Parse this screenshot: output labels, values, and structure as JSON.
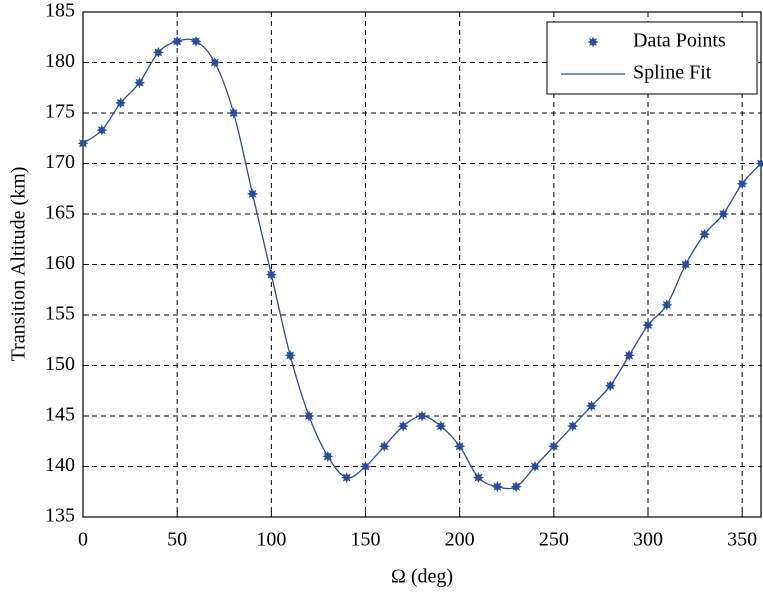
{
  "chart_data": {
    "type": "line",
    "xlabel": "Ω (deg)",
    "ylabel": "Transition Altitude (km)",
    "x": [
      0,
      10,
      20,
      30,
      40,
      50,
      60,
      70,
      80,
      90,
      100,
      110,
      120,
      130,
      140,
      150,
      160,
      170,
      180,
      190,
      200,
      210,
      220,
      230,
      240,
      250,
      260,
      270,
      280,
      290,
      300,
      310,
      320,
      330,
      340,
      350,
      360
    ],
    "series": [
      {
        "name": "Data Points",
        "color": "#2a4e9c",
        "style": "markers",
        "values": [
          172,
          173.3,
          176,
          178,
          181,
          182.1,
          182.1,
          180,
          175,
          167,
          159,
          151,
          145,
          141,
          138.9,
          140,
          142,
          144,
          145,
          144,
          142,
          138.9,
          138,
          138,
          140,
          142,
          144,
          146,
          148,
          151,
          154,
          156,
          160,
          163,
          165,
          168,
          170
        ]
      },
      {
        "name": "Spline Fit",
        "color": "#2a4e9c",
        "style": "spline",
        "values": [
          172,
          173.3,
          176,
          178,
          181,
          182.1,
          182.1,
          180,
          175,
          167,
          159,
          151,
          145,
          141,
          138.9,
          140,
          142,
          144,
          145,
          144,
          142,
          138.9,
          138,
          138,
          140,
          142,
          144,
          146,
          148,
          151,
          154,
          156,
          160,
          163,
          165,
          168,
          170
        ]
      }
    ],
    "xlim": [
      0,
      360
    ],
    "xticks": [
      0,
      50,
      100,
      150,
      200,
      250,
      300,
      350
    ],
    "ylim": [
      135,
      185
    ],
    "yticks": [
      135,
      140,
      145,
      150,
      155,
      160,
      165,
      170,
      175,
      180,
      185
    ],
    "grid": true,
    "legend": "upper right"
  }
}
